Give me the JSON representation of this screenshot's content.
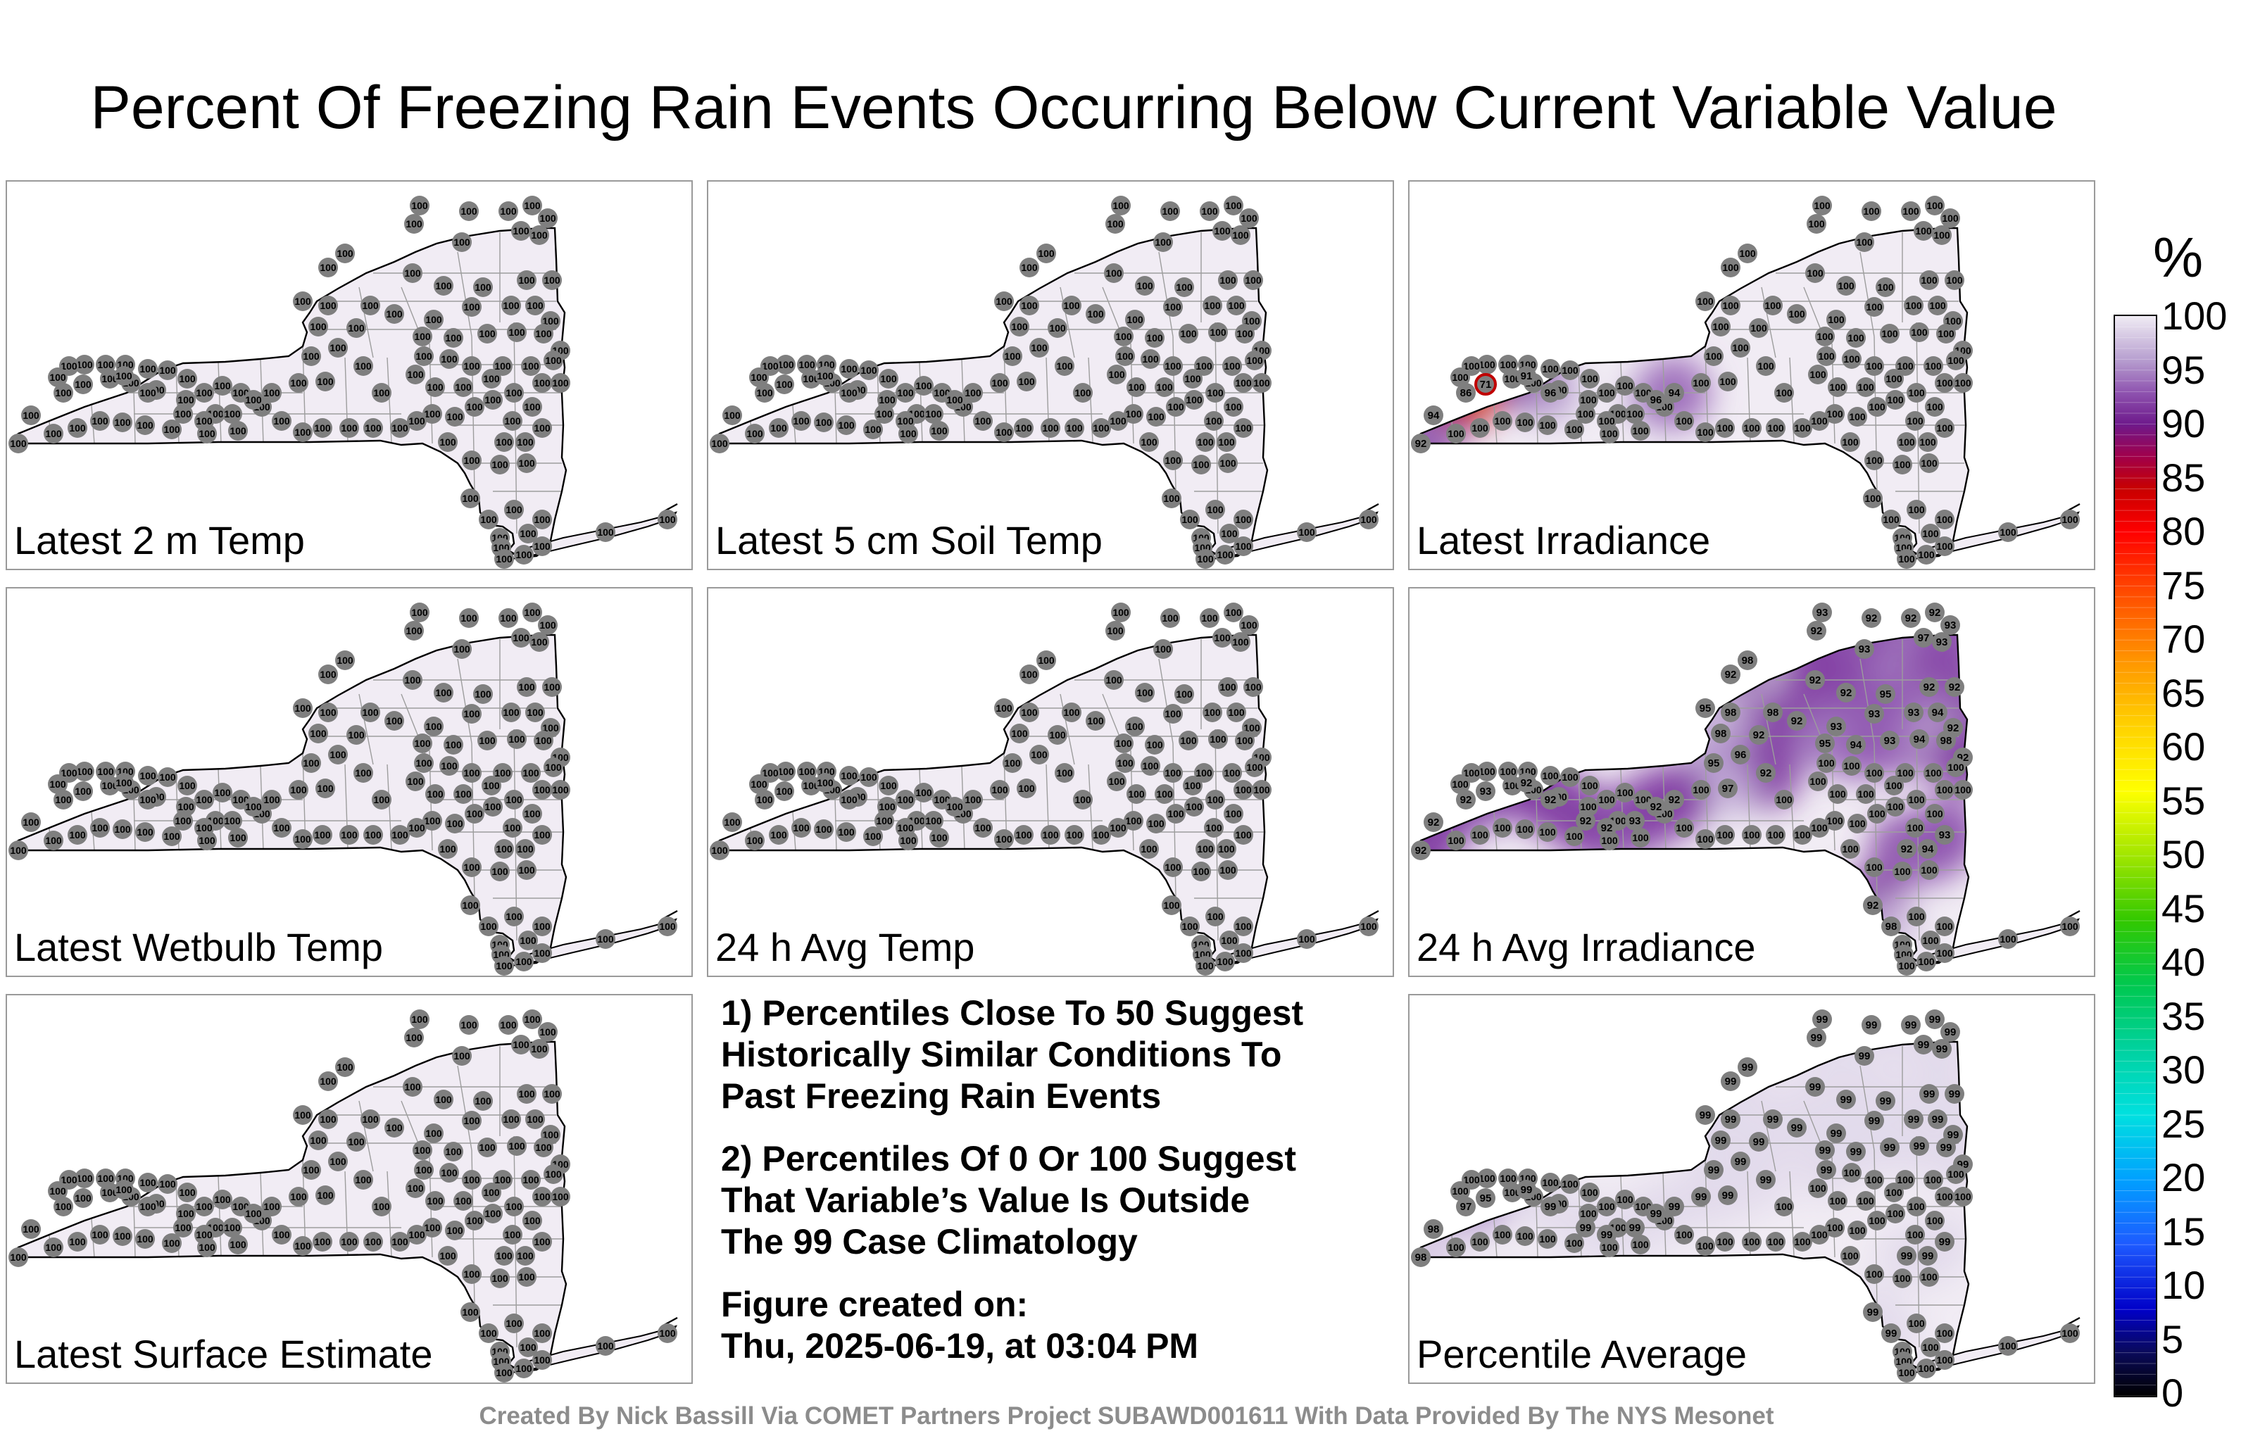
{
  "title": "Percent Of Freezing Rain Events Occurring Below Current Variable Value",
  "colors": {
    "base_fill": "#f1ecf4",
    "map_outline": "#000000",
    "station_marker": "#7f7f7f"
  },
  "panels": [
    {
      "label": "Latest 2 m Temp",
      "values": [
        100,
        100,
        100,
        100,
        100,
        100,
        100,
        100,
        100,
        100,
        100,
        100,
        100,
        100,
        100,
        100,
        100,
        100,
        100,
        100,
        100,
        100,
        100,
        100,
        100,
        100,
        100,
        100,
        100,
        100,
        100,
        100,
        100,
        100,
        100,
        100,
        100,
        100,
        100,
        100,
        100,
        100,
        100,
        100,
        100,
        100,
        100,
        100,
        100,
        100,
        100,
        100,
        100,
        100,
        100,
        100,
        100,
        100,
        100,
        100,
        100,
        100,
        100,
        100,
        100,
        100,
        100,
        100,
        100,
        100,
        100,
        100,
        100,
        100,
        100,
        100,
        100,
        100,
        100,
        100,
        100,
        100,
        100,
        100,
        100,
        100,
        100,
        100,
        100,
        100,
        100,
        100,
        100,
        100,
        100,
        100,
        100,
        100,
        100,
        100,
        100,
        100,
        100,
        100,
        100,
        100,
        100,
        100,
        100,
        100,
        100,
        100,
        100,
        100,
        100,
        100,
        100,
        100,
        100,
        100
      ]
    },
    {
      "label": "Latest 5 cm Soil Temp",
      "values": [
        100,
        100,
        100,
        100,
        100,
        100,
        100,
        100,
        100,
        100,
        100,
        100,
        100,
        100,
        100,
        100,
        100,
        100,
        100,
        100,
        100,
        100,
        100,
        100,
        100,
        100,
        100,
        100,
        100,
        100,
        100,
        100,
        100,
        100,
        100,
        100,
        100,
        100,
        100,
        100,
        100,
        100,
        100,
        100,
        100,
        100,
        100,
        100,
        100,
        100,
        100,
        100,
        100,
        100,
        100,
        100,
        100,
        100,
        100,
        100,
        100,
        100,
        100,
        100,
        100,
        100,
        100,
        100,
        100,
        100,
        100,
        100,
        100,
        100,
        100,
        100,
        100,
        100,
        100,
        100,
        100,
        100,
        100,
        100,
        100,
        100,
        100,
        100,
        100,
        100,
        100,
        100,
        100,
        100,
        100,
        100,
        100,
        100,
        100,
        100,
        100,
        100,
        100,
        100,
        100,
        100,
        100,
        100,
        100,
        100,
        100,
        100,
        100,
        100,
        100,
        100,
        100,
        100,
        100,
        100
      ]
    },
    {
      "label": "Latest Irradiance",
      "values": [
        100,
        100,
        100,
        100,
        100,
        100,
        100,
        100,
        100,
        100,
        100,
        100,
        100,
        100,
        100,
        100,
        100,
        100,
        100,
        100,
        100,
        100,
        100,
        100,
        100,
        100,
        100,
        100,
        100,
        100,
        100,
        100,
        100,
        100,
        100,
        100,
        100,
        100,
        100,
        100,
        100,
        100,
        100,
        100,
        100,
        100,
        100,
        100,
        100,
        100,
        100,
        100,
        100,
        100,
        100,
        100,
        100,
        100,
        100,
        100,
        100,
        100,
        100,
        100,
        100,
        100,
        100,
        100,
        100,
        100,
        100,
        100,
        100,
        100,
        100,
        100,
        100,
        100,
        100,
        100,
        100,
        100,
        100,
        100,
        100,
        100,
        100,
        100,
        100,
        100,
        100,
        100,
        100,
        100,
        92,
        94,
        86,
        71,
        91,
        96,
        100,
        100,
        100,
        96,
        94,
        100,
        100,
        100,
        100,
        100,
        100,
        100,
        100,
        100,
        100,
        100,
        100,
        100,
        100,
        100
      ]
    },
    {
      "label": "Latest Wetbulb Temp",
      "values": [
        100,
        100,
        100,
        100,
        100,
        100,
        100,
        100,
        100,
        100,
        100,
        100,
        100,
        100,
        100,
        100,
        100,
        100,
        100,
        100,
        100,
        100,
        100,
        100,
        100,
        100,
        100,
        100,
        100,
        100,
        100,
        100,
        100,
        100,
        100,
        100,
        100,
        100,
        100,
        100,
        100,
        100,
        100,
        100,
        100,
        100,
        100,
        100,
        100,
        100,
        100,
        100,
        100,
        100,
        100,
        100,
        100,
        100,
        100,
        100,
        100,
        100,
        100,
        100,
        100,
        100,
        100,
        100,
        100,
        100,
        100,
        100,
        100,
        100,
        100,
        100,
        100,
        100,
        100,
        100,
        100,
        100,
        100,
        100,
        100,
        100,
        100,
        100,
        100,
        100,
        100,
        100,
        100,
        100,
        100,
        100,
        100,
        100,
        100,
        100,
        100,
        100,
        100,
        100,
        100,
        100,
        100,
        100,
        100,
        100,
        100,
        100,
        100,
        100,
        100,
        100,
        100,
        100,
        100,
        100
      ]
    },
    {
      "label": "24 h Avg Temp",
      "values": [
        100,
        100,
        100,
        100,
        100,
        100,
        100,
        100,
        100,
        100,
        100,
        100,
        100,
        100,
        100,
        100,
        100,
        100,
        100,
        100,
        100,
        100,
        100,
        100,
        100,
        100,
        100,
        100,
        100,
        100,
        100,
        100,
        100,
        100,
        100,
        100,
        100,
        100,
        100,
        100,
        100,
        100,
        100,
        100,
        100,
        100,
        100,
        100,
        100,
        100,
        100,
        100,
        100,
        100,
        100,
        100,
        100,
        100,
        100,
        100,
        100,
        100,
        100,
        100,
        100,
        100,
        100,
        100,
        100,
        100,
        100,
        100,
        100,
        100,
        100,
        100,
        100,
        100,
        100,
        100,
        100,
        100,
        100,
        100,
        100,
        100,
        100,
        100,
        100,
        100,
        100,
        100,
        100,
        100,
        100,
        100,
        100,
        100,
        100,
        100,
        100,
        100,
        100,
        100,
        100,
        100,
        100,
        100,
        100,
        100,
        100,
        100,
        100,
        100,
        100,
        100,
        100,
        100,
        100,
        100
      ]
    },
    {
      "label": "24 h Avg Irradiance",
      "values": [
        93,
        92,
        92,
        92,
        93,
        92,
        97,
        93,
        93,
        98,
        92,
        92,
        92,
        92,
        92,
        95,
        98,
        98,
        92,
        93,
        95,
        93,
        93,
        94,
        92,
        92,
        98,
        96,
        95,
        92,
        95,
        94,
        93,
        94,
        98,
        92,
        97,
        100,
        100,
        100,
        100,
        100,
        100,
        100,
        100,
        100,
        100,
        100,
        100,
        100,
        100,
        100,
        100,
        100,
        100,
        100,
        100,
        100,
        100,
        100,
        100,
        100,
        100,
        100,
        100,
        100,
        100,
        100,
        100,
        100,
        100,
        100,
        100,
        100,
        100,
        100,
        100,
        100,
        100,
        100,
        100,
        100,
        100,
        100,
        100,
        100,
        100,
        100,
        100,
        100,
        100,
        100,
        100,
        100,
        92,
        92,
        92,
        93,
        92,
        92,
        92,
        92,
        93,
        92,
        92,
        92,
        94,
        93,
        92,
        98,
        100,
        100,
        100,
        100,
        100,
        100,
        100,
        100,
        100,
        100
      ]
    },
    {
      "label": "Percentile Average",
      "values": [
        99,
        99,
        99,
        99,
        99,
        99,
        99,
        99,
        99,
        99,
        99,
        99,
        99,
        99,
        99,
        99,
        99,
        99,
        99,
        99,
        99,
        99,
        99,
        99,
        99,
        99,
        99,
        99,
        99,
        99,
        99,
        99,
        99,
        99,
        99,
        99,
        99,
        99,
        99,
        100,
        100,
        100,
        100,
        100,
        100,
        100,
        100,
        100,
        100,
        100,
        100,
        100,
        100,
        100,
        100,
        100,
        100,
        100,
        100,
        100,
        100,
        100,
        100,
        100,
        100,
        100,
        100,
        100,
        100,
        100,
        100,
        100,
        100,
        100,
        100,
        100,
        100,
        100,
        100,
        100,
        100,
        100,
        100,
        100,
        100,
        100,
        100,
        100,
        100,
        100,
        100,
        100,
        100,
        100,
        98,
        98,
        97,
        95,
        99,
        99,
        99,
        99,
        99,
        99,
        99,
        99,
        99,
        99,
        99,
        99,
        100,
        100,
        100,
        100,
        100,
        100,
        100,
        100,
        100,
        100
      ]
    },
    {
      "label": "Latest Surface Estimate",
      "values": [
        100,
        100,
        100,
        100,
        100,
        100,
        100,
        100,
        100,
        100,
        100,
        100,
        100,
        100,
        100,
        100,
        100,
        100,
        100,
        100,
        100,
        100,
        100,
        100,
        100,
        100,
        100,
        100,
        100,
        100,
        100,
        100,
        100,
        100,
        100,
        100,
        100,
        100,
        100,
        100,
        100,
        100,
        100,
        100,
        100,
        100,
        100,
        100,
        100,
        100,
        100,
        100,
        100,
        100,
        100,
        100,
        100,
        100,
        100,
        100,
        100,
        100,
        100,
        100,
        100,
        100,
        100,
        100,
        100,
        100,
        100,
        100,
        100,
        100,
        100,
        100,
        100,
        100,
        100,
        100,
        100,
        100,
        100,
        100,
        100,
        100,
        100,
        100,
        100,
        100,
        100,
        100,
        100,
        100,
        100,
        100,
        100,
        100,
        100,
        100,
        100,
        100,
        100,
        100,
        100,
        100,
        100,
        100,
        100,
        100,
        100,
        100,
        100,
        100,
        100,
        100,
        100,
        100,
        100,
        100
      ]
    }
  ],
  "notes": [
    [
      "1) Percentiles Close To 50 Suggest",
      "Historically Similar Conditions To",
      "Past Freezing Rain Events"
    ],
    [
      "2) Percentiles Of 0 Or 100 Suggest",
      "That Variable’s Value Is Outside",
      "The 99 Case Climatology"
    ],
    [
      "Figure created on:",
      "Thu, 2025-06-19, at 03:04 PM"
    ]
  ],
  "credit": "Created By Nick Bassill Via COMET Partners Project SUBAWD001611 With Data Provided By The NYS Mesonet",
  "colorbar": {
    "unit": "%",
    "min": 0,
    "max": 100,
    "step": 5,
    "ticks": [
      "0",
      "5",
      "10",
      "15",
      "20",
      "25",
      "30",
      "35",
      "40",
      "45",
      "50",
      "55",
      "60",
      "65",
      "70",
      "75",
      "80",
      "85",
      "90",
      "95",
      "100"
    ],
    "stops": [
      [
        0,
        "#000000"
      ],
      [
        4,
        "#0a0a5a"
      ],
      [
        8,
        "#0000c8"
      ],
      [
        14,
        "#1e5aff"
      ],
      [
        20,
        "#00a0ff"
      ],
      [
        26,
        "#00e0e0"
      ],
      [
        32,
        "#00d2a0"
      ],
      [
        38,
        "#00c850"
      ],
      [
        44,
        "#32c800"
      ],
      [
        50,
        "#a0e600"
      ],
      [
        56,
        "#ffff00"
      ],
      [
        62,
        "#ffd200"
      ],
      [
        68,
        "#ff9600"
      ],
      [
        74,
        "#ff5000"
      ],
      [
        80,
        "#ff0000"
      ],
      [
        84,
        "#c80000"
      ],
      [
        87,
        "#a0004b"
      ],
      [
        90,
        "#6e1a8c"
      ],
      [
        93,
        "#8f55b0"
      ],
      [
        96,
        "#b8a0d0"
      ],
      [
        100,
        "#f0ecf4"
      ]
    ]
  }
}
